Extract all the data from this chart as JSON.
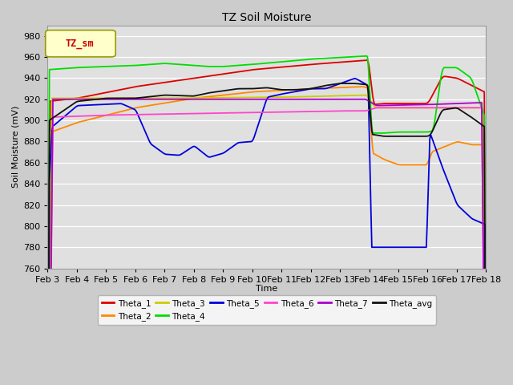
{
  "title": "TZ Soil Moisture",
  "xlabel": "Time",
  "ylabel": "Soil Moisture (mV)",
  "ylim": [
    760,
    990
  ],
  "yticks": [
    760,
    780,
    800,
    820,
    840,
    860,
    880,
    900,
    920,
    940,
    960,
    980
  ],
  "background_color": "#cccccc",
  "plot_bg_color": "#e0e0e0",
  "legend_label": "TZ_sm",
  "series_colors": {
    "Theta_1": "#dd0000",
    "Theta_2": "#ff8800",
    "Theta_3": "#cccc00",
    "Theta_4": "#00dd00",
    "Theta_5": "#0000dd",
    "Theta_6": "#ff44cc",
    "Theta_7": "#aa00cc",
    "Theta_avg": "#111111"
  },
  "x_labels": [
    "Feb 3",
    "Feb 4",
    "Feb 5",
    "Feb 6",
    "Feb 7",
    "Feb 8",
    "Feb 9",
    "Feb 10",
    "Feb 11",
    "Feb 12",
    "Feb 13",
    "Feb 14",
    "Feb 15",
    "Feb 16",
    "Feb 17",
    "Feb 18"
  ],
  "legend_order": [
    "Theta_1",
    "Theta_2",
    "Theta_3",
    "Theta_4",
    "Theta_5",
    "Theta_6",
    "Theta_7",
    "Theta_avg"
  ]
}
